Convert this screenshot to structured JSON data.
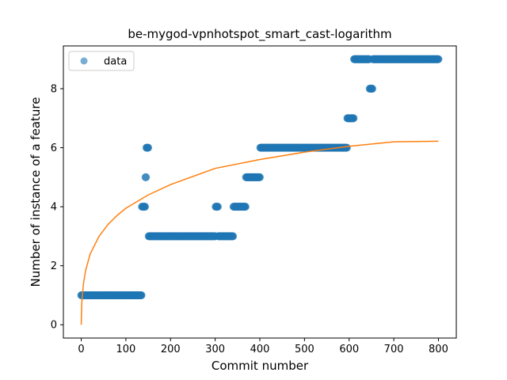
{
  "chart_data": {
    "type": "scatter",
    "title": "be-mygod-vpnhotspot_smart_cast-logarithm",
    "xlabel": "Commit number",
    "ylabel": "Number of instance of a feature",
    "xlim": [
      -40,
      840
    ],
    "ylim": [
      -0.45,
      9.45
    ],
    "xticks": [
      0,
      100,
      200,
      300,
      400,
      500,
      600,
      700,
      800
    ],
    "yticks": [
      0,
      2,
      4,
      6,
      8
    ],
    "grid": false,
    "legend_position": "top-left",
    "series": [
      {
        "name": "data",
        "kind": "scatter",
        "color": "#1f77b4",
        "segments": [
          {
            "x_start": 0,
            "x_end": 135,
            "y": 1
          },
          {
            "x_start": 136,
            "x_end": 143,
            "y": 4
          },
          {
            "x_start": 144,
            "x_end": 145,
            "y": 5
          },
          {
            "x_start": 146,
            "x_end": 150,
            "y": 6
          },
          {
            "x_start": 151,
            "x_end": 300,
            "y": 3
          },
          {
            "x_start": 301,
            "x_end": 306,
            "y": 4
          },
          {
            "x_start": 307,
            "x_end": 340,
            "y": 3
          },
          {
            "x_start": 341,
            "x_end": 368,
            "y": 4
          },
          {
            "x_start": 369,
            "x_end": 400,
            "y": 5
          },
          {
            "x_start": 401,
            "x_end": 595,
            "y": 6
          },
          {
            "x_start": 596,
            "x_end": 610,
            "y": 7
          },
          {
            "x_start": 611,
            "x_end": 645,
            "y": 9
          },
          {
            "x_start": 646,
            "x_end": 652,
            "y": 8
          },
          {
            "x_start": 653,
            "x_end": 800,
            "y": 9
          }
        ]
      },
      {
        "kind": "line",
        "color": "#ff7f0e",
        "fit": "logarithmic",
        "x_range": [
          0,
          800
        ],
        "points": [
          [
            0,
            0
          ],
          [
            1,
            0.65
          ],
          [
            2,
            0.9
          ],
          [
            5,
            1.4
          ],
          [
            10,
            1.85
          ],
          [
            20,
            2.4
          ],
          [
            40,
            3.0
          ],
          [
            60,
            3.4
          ],
          [
            80,
            3.7
          ],
          [
            100,
            3.95
          ],
          [
            150,
            4.4
          ],
          [
            200,
            4.75
          ],
          [
            300,
            5.3
          ],
          [
            400,
            5.6
          ],
          [
            500,
            5.85
          ],
          [
            600,
            6.05
          ],
          [
            700,
            6.2
          ],
          [
            800,
            6.22
          ]
        ]
      }
    ]
  }
}
